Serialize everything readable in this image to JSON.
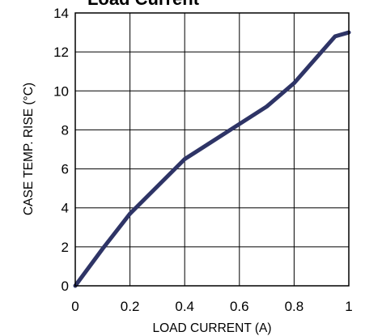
{
  "chart_data": {
    "type": "line",
    "title": "Load Current",
    "xlabel": "LOAD CURRENT (A)",
    "ylabel": "CASE TEMP. RISE (°C)",
    "xlim": [
      0,
      1
    ],
    "ylim": [
      0,
      14
    ],
    "grid": true,
    "x_ticks": [
      0,
      0.2,
      0.4,
      0.6,
      0.8,
      1
    ],
    "x_tick_labels": [
      "0",
      "0.2",
      "0.4",
      "0.6",
      "0.8",
      "1"
    ],
    "y_ticks": [
      0,
      2,
      4,
      6,
      8,
      10,
      12,
      14
    ],
    "y_tick_labels": [
      "0",
      "2",
      "4",
      "6",
      "8",
      "10",
      "12",
      "14"
    ],
    "series": [
      {
        "color": "#2e3466",
        "x": [
          0,
          0.1,
          0.2,
          0.3,
          0.4,
          0.5,
          0.6,
          0.7,
          0.75,
          0.8,
          0.85,
          0.9,
          0.95,
          1.0
        ],
        "y": [
          0,
          1.9,
          3.7,
          5.1,
          6.5,
          7.4,
          8.3,
          9.2,
          9.8,
          10.4,
          11.2,
          12.0,
          12.8,
          13.0
        ]
      }
    ]
  }
}
